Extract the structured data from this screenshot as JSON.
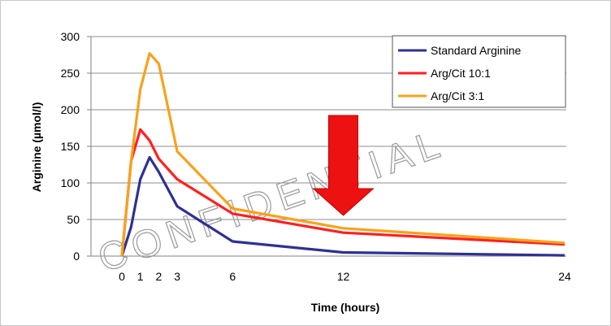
{
  "chart_data": {
    "type": "line",
    "title": "",
    "xlabel": "Time (hours)",
    "ylabel": "Arginine (µmol/l)",
    "xlim": [
      0,
      24
    ],
    "ylim": [
      0,
      300
    ],
    "x_ticks": [
      0,
      1,
      2,
      3,
      6,
      12,
      24
    ],
    "y_ticks": [
      0,
      50,
      100,
      150,
      200,
      250,
      300
    ],
    "grid": true,
    "legend_position": "top-right",
    "series": [
      {
        "name": "Standard Arginine",
        "color": "#2e3192",
        "points": [
          [
            0,
            0
          ],
          [
            0.5,
            40
          ],
          [
            1,
            105
          ],
          [
            1.5,
            135
          ],
          [
            2,
            115
          ],
          [
            3,
            68
          ],
          [
            6,
            20
          ],
          [
            12,
            5
          ],
          [
            24,
            1
          ]
        ]
      },
      {
        "name": "Arg/Cit 10:1",
        "color": "#ff2020",
        "points": [
          [
            0,
            0
          ],
          [
            0.5,
            130
          ],
          [
            1,
            173
          ],
          [
            1.5,
            158
          ],
          [
            2,
            133
          ],
          [
            3,
            105
          ],
          [
            6,
            58
          ],
          [
            12,
            32
          ],
          [
            24,
            16
          ]
        ]
      },
      {
        "name": "Arg/Cit 3:1",
        "color": "#f7a21b",
        "points": [
          [
            0,
            0
          ],
          [
            0.5,
            130
          ],
          [
            1,
            228
          ],
          [
            1.5,
            277
          ],
          [
            2,
            263
          ],
          [
            3,
            143
          ],
          [
            6,
            65
          ],
          [
            12,
            38
          ],
          [
            24,
            18
          ]
        ]
      }
    ],
    "annotation": {
      "type": "down-arrow",
      "x": 12,
      "color": "#ee1111"
    },
    "watermark": "CONFIDENTIAL"
  }
}
